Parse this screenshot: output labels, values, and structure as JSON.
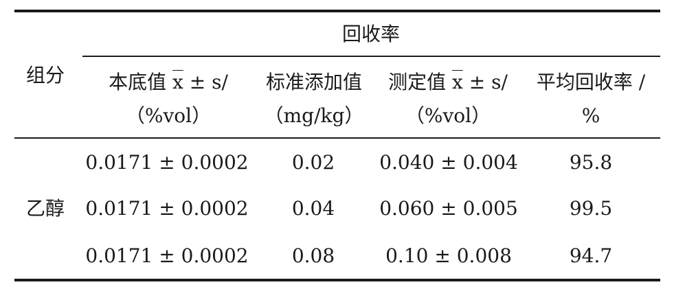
{
  "table": {
    "group_header": "回收率",
    "row_header": "组分",
    "columns": [
      {
        "line1_pre": "本底值 ",
        "x": "x",
        "line1_post": " ± s/",
        "line2": "（%vol）"
      },
      {
        "line1": "标准添加值",
        "line2": "（mg/kg）"
      },
      {
        "line1_pre": "测定值 ",
        "x": "x",
        "line1_post": " ± s/",
        "line2": "（%vol）"
      },
      {
        "line1": "平均回收率 /",
        "line2": "%"
      }
    ],
    "component": "乙醇",
    "rows": [
      {
        "background": "0.0171 ± 0.0002",
        "added": "0.02",
        "measured": "0.040 ± 0.004",
        "recovery": "95.8"
      },
      {
        "background": "0.0171 ± 0.0002",
        "added": "0.04",
        "measured": "0.060 ± 0.005",
        "recovery": "99.5"
      },
      {
        "background": "0.0171 ± 0.0002",
        "added": "0.08",
        "measured": "0.10 ± 0.008",
        "recovery": "94.7"
      }
    ]
  }
}
